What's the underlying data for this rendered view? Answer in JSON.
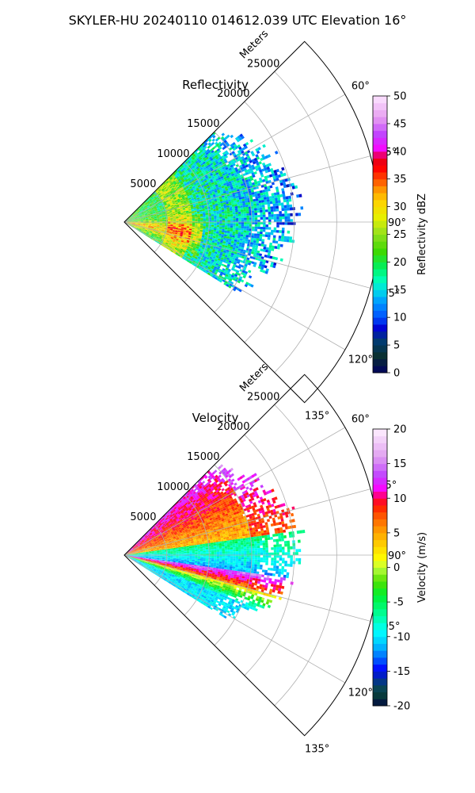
{
  "suptitle": "SKYLER-HU  20240110  014612.039 UTC Elevation 16°",
  "chart_data": [
    {
      "type": "heatmap",
      "subtype": "polar-sector",
      "title": "Reflectivity",
      "radial_axis_label": "Meters",
      "radial_ticks": [
        "5000",
        "10000",
        "15000",
        "20000",
        "25000"
      ],
      "radial_range": [
        0,
        30000
      ],
      "angular_ticks": [
        "60°",
        "75°",
        "90°",
        "105°",
        "120°",
        "135°"
      ],
      "angular_range_deg": [
        45,
        135
      ],
      "grid": true,
      "colorbar": {
        "label": "Reflectivity dBZ",
        "range": [
          0,
          50
        ],
        "ticks": [
          "0",
          "5",
          "10",
          "15",
          "20",
          "25",
          "30",
          "35",
          "40",
          "45",
          "50"
        ]
      },
      "field": {
        "kind": "reflectivity",
        "data_extent_m": 20000,
        "data_angles_deg": [
          45,
          122
        ],
        "colors": {
          "low": "#00e5c8",
          "mid": "#7dd21f",
          "high": "#ff1a1a",
          "peak": "#ff00ff"
        }
      }
    },
    {
      "type": "heatmap",
      "subtype": "polar-sector",
      "title": "Velocity",
      "radial_axis_label": "Meters",
      "radial_ticks": [
        "5000",
        "10000",
        "15000",
        "20000",
        "25000"
      ],
      "radial_range": [
        0,
        30000
      ],
      "angular_ticks": [
        "60°",
        "75°",
        "90°",
        "105°",
        "120°",
        "135°"
      ],
      "angular_range_deg": [
        45,
        135
      ],
      "grid": true,
      "colorbar": {
        "label": "Velocity (m/s)",
        "range": [
          -20,
          20
        ],
        "ticks": [
          "-20",
          "-15",
          "-10",
          "-5",
          "0",
          "5",
          "10",
          "15",
          "20"
        ]
      },
      "field": {
        "kind": "velocity",
        "data_extent_m": 20000,
        "data_angles_deg": [
          45,
          122
        ],
        "colors": {
          "positive": "#ff2200",
          "zero": "#ffd400",
          "negative": "#00ff80",
          "strong_negative": "#00f0ff",
          "fold": "#ff00ff"
        }
      }
    }
  ]
}
